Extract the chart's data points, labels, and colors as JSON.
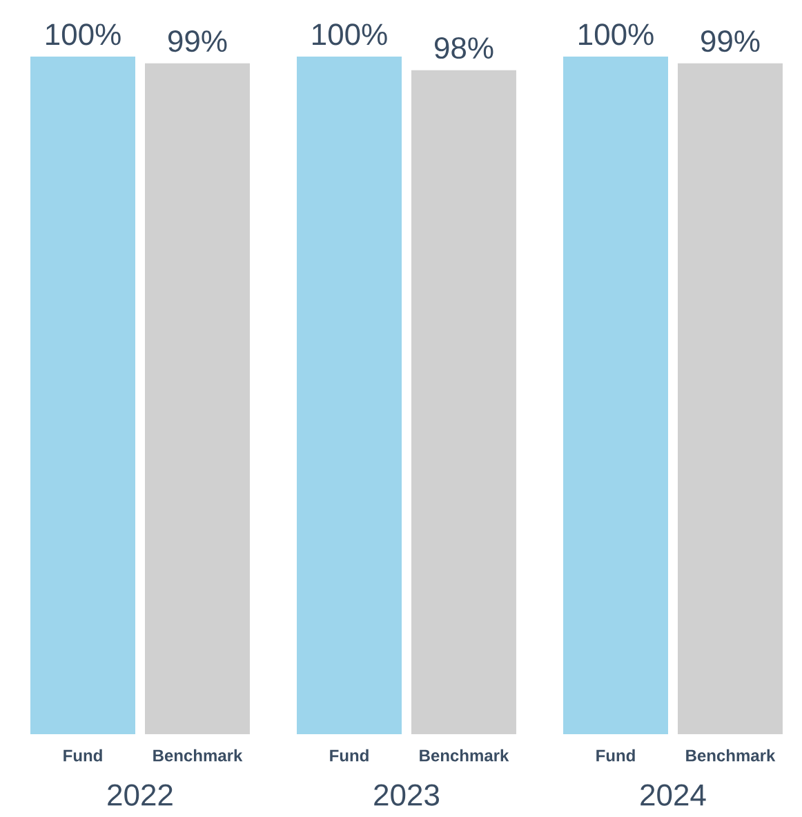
{
  "chart_data": {
    "type": "bar",
    "categories": [
      "2022",
      "2023",
      "2024"
    ],
    "series": [
      {
        "name": "Fund",
        "color": "#9dd5ec",
        "values": [
          100,
          100,
          100
        ],
        "value_labels": [
          "100%",
          "100%",
          "100%"
        ]
      },
      {
        "name": "Benchmark",
        "color": "#d0d0d0",
        "values": [
          99,
          98,
          99
        ],
        "value_labels": [
          "99%",
          "98%",
          "99%"
        ]
      }
    ]
  }
}
